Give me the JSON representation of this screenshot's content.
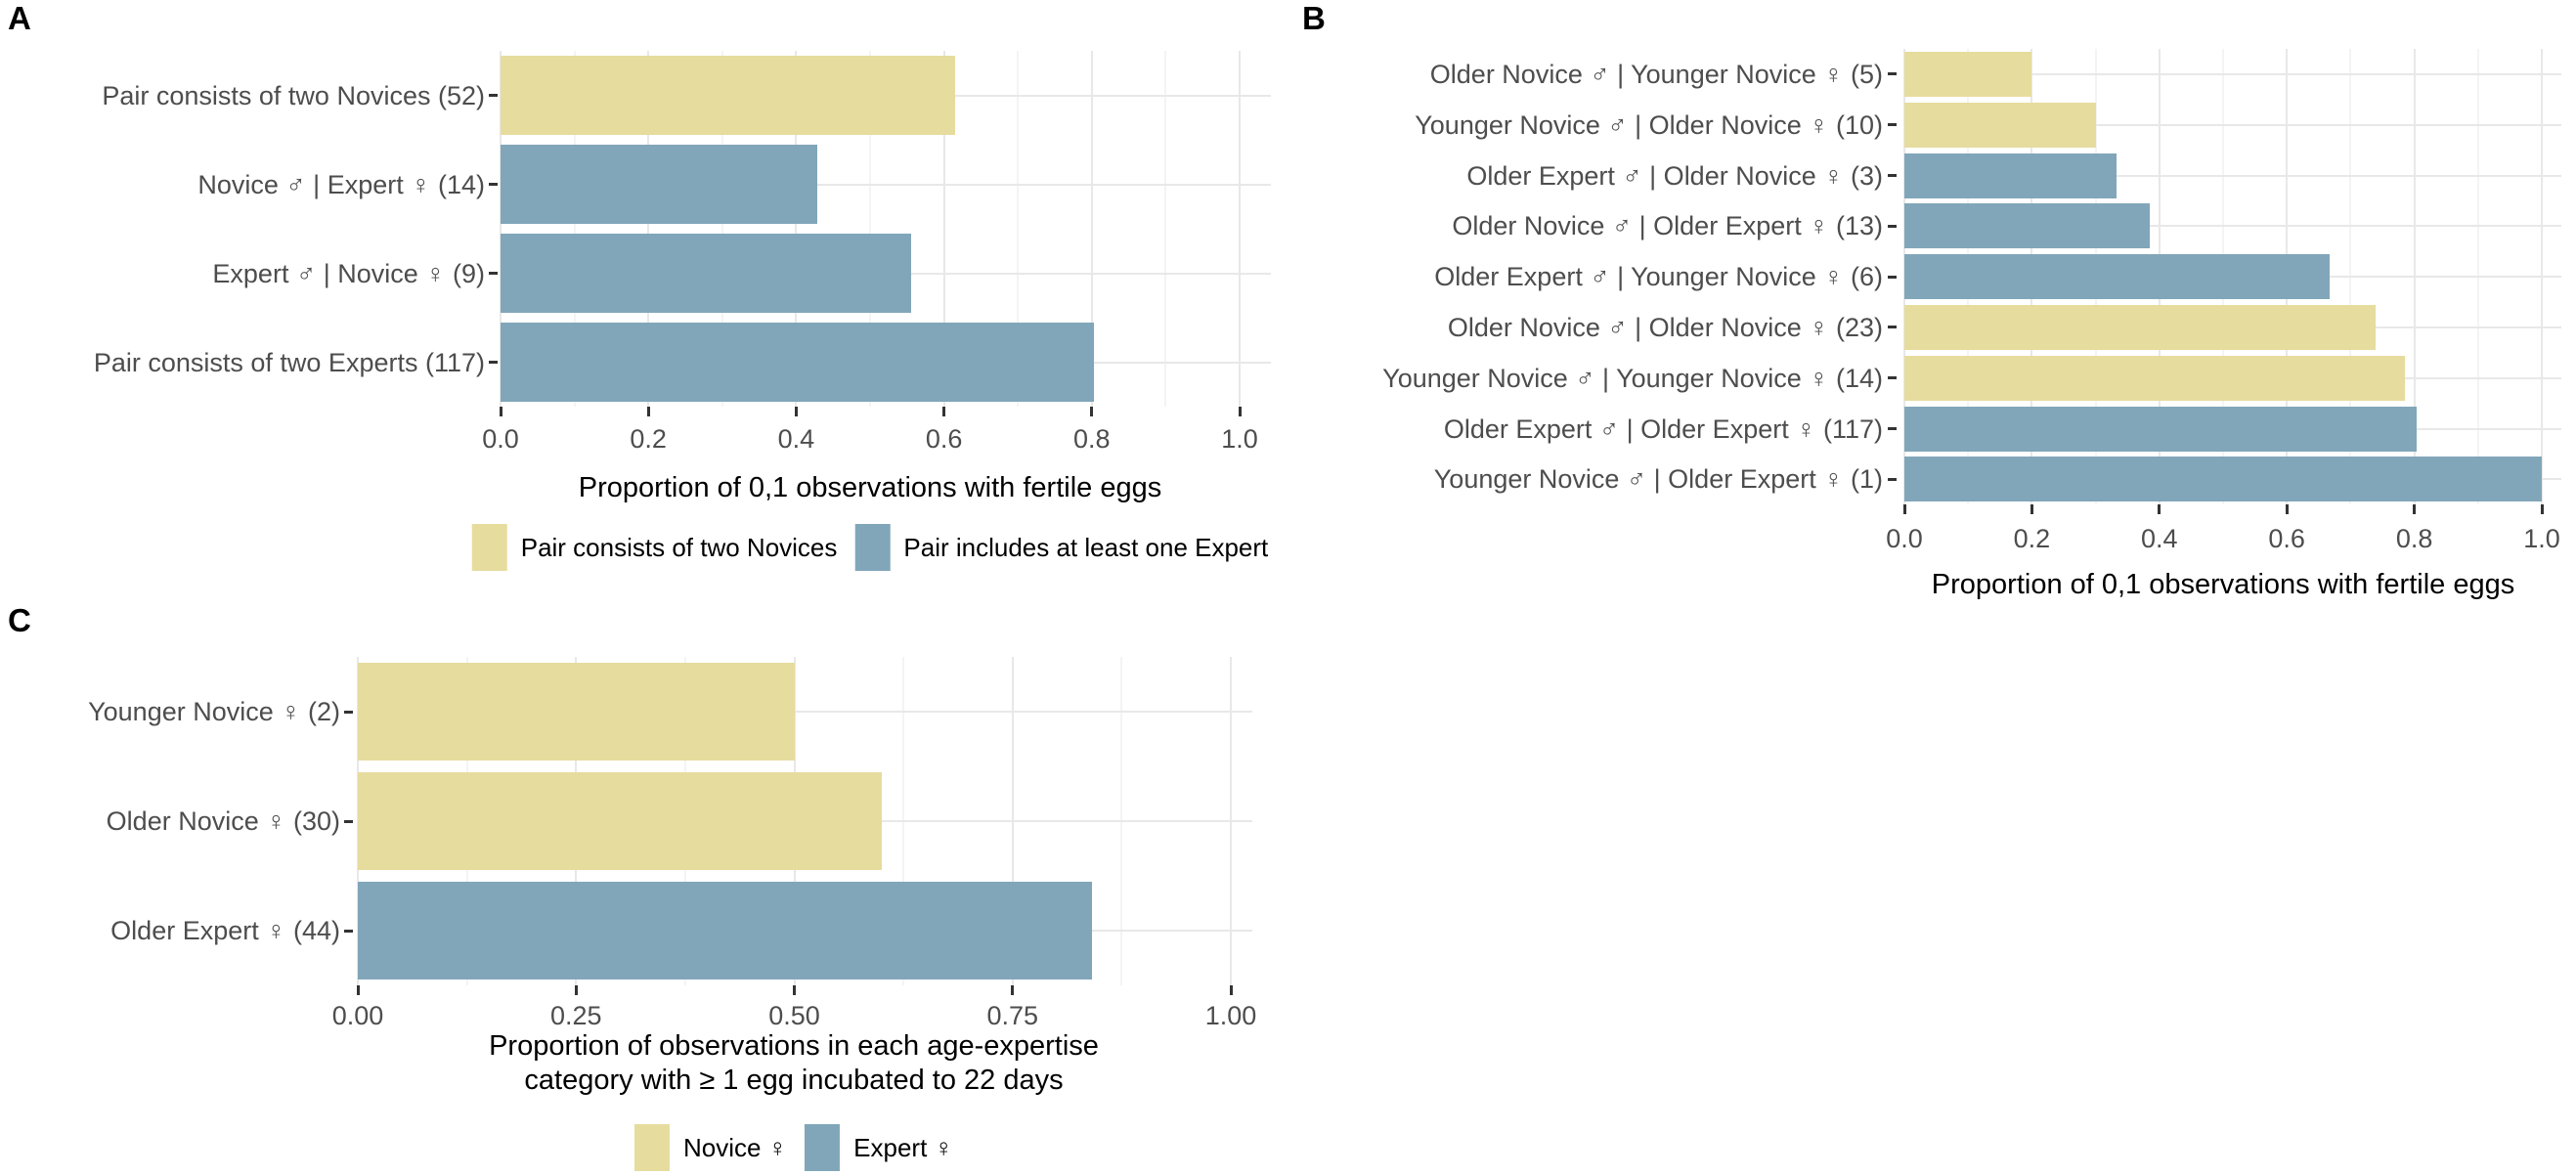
{
  "figure": {
    "background": "#ffffff",
    "colors": {
      "novice": "#e6dc9e",
      "expert": "#81a6ba",
      "grid_major": "#e8e8e8",
      "grid_minor": "#f4f4f4",
      "tick_mark": "#333333",
      "axis_text": "#4d4d4d",
      "title_text": "#000000"
    }
  },
  "chart_data": [
    {
      "type": "bar",
      "orientation": "horizontal",
      "panel_label": "A",
      "categories": [
        "Pair consists of two Novices (52)",
        "Novice ♂ | Expert ♀ (14)",
        "Expert ♂ | Novice ♀ (9)",
        "Pair consists of two Experts (117)"
      ],
      "values": [
        0.615,
        0.429,
        0.556,
        0.803
      ],
      "bar_colors": [
        "novice",
        "expert",
        "expert",
        "expert"
      ],
      "xlabel_lines": [
        "Proportion of 0,1 observations with fertile eggs"
      ],
      "xlim": [
        0,
        1
      ],
      "tick_labels": [
        "0.0",
        "0.2",
        "0.4",
        "0.6",
        "0.8",
        "1.0"
      ],
      "tick_values": [
        0,
        0.2,
        0.4,
        0.6,
        0.8,
        1.0
      ],
      "grid": "major+minor",
      "legend": {
        "position": "bottom",
        "items": [
          {
            "label": "Pair consists of two Novices",
            "color": "novice"
          },
          {
            "label": "Pair includes at least one Expert",
            "color": "expert"
          }
        ]
      }
    },
    {
      "type": "bar",
      "orientation": "horizontal",
      "panel_label": "B",
      "categories": [
        "Older Novice ♂ | Younger Novice ♀ (5)",
        "Younger Novice ♂ | Older Novice ♀ (10)",
        "Older Expert ♂ | Older Novice ♀ (3)",
        "Older Novice ♂ | Older Expert ♀ (13)",
        "Older Expert ♂ | Younger Novice ♀ (6)",
        "Older Novice ♂ | Older Novice ♀ (23)",
        "Younger Novice ♂ | Younger Novice ♀ (14)",
        "Older Expert ♂ | Older Expert ♀ (117)",
        "Younger Novice ♂ | Older Expert ♀ (1)"
      ],
      "values": [
        0.2,
        0.3,
        0.333,
        0.385,
        0.667,
        0.739,
        0.786,
        0.803,
        1.0
      ],
      "bar_colors": [
        "novice",
        "novice",
        "expert",
        "expert",
        "expert",
        "novice",
        "novice",
        "expert",
        "expert"
      ],
      "xlabel_lines": [
        "Proportion of 0,1 observations with fertile eggs"
      ],
      "xlim": [
        0,
        1
      ],
      "tick_labels": [
        "0.0",
        "0.2",
        "0.4",
        "0.6",
        "0.8",
        "1.0"
      ],
      "tick_values": [
        0,
        0.2,
        0.4,
        0.6,
        0.8,
        1.0
      ],
      "grid": "major+minor",
      "legend": null
    },
    {
      "type": "bar",
      "orientation": "horizontal",
      "panel_label": "C",
      "categories": [
        "Younger Novice ♀ (2)",
        "Older Novice ♀ (30)",
        "Older Expert ♀ (44)"
      ],
      "values": [
        0.5,
        0.6,
        0.841
      ],
      "bar_colors": [
        "novice",
        "novice",
        "expert"
      ],
      "xlabel_lines": [
        "Proportion of observations in each age-expertise",
        "category with ≥ 1 egg incubated to 22 days"
      ],
      "xlim": [
        0,
        1
      ],
      "tick_labels": [
        "0.00",
        "0.25",
        "0.50",
        "0.75",
        "1.00"
      ],
      "tick_values": [
        0,
        0.25,
        0.5,
        0.75,
        1.0
      ],
      "grid": "major+minor",
      "legend": {
        "position": "bottom",
        "items": [
          {
            "label": "Novice ♀",
            "color": "novice"
          },
          {
            "label": "Expert ♀",
            "color": "expert"
          }
        ]
      }
    }
  ]
}
